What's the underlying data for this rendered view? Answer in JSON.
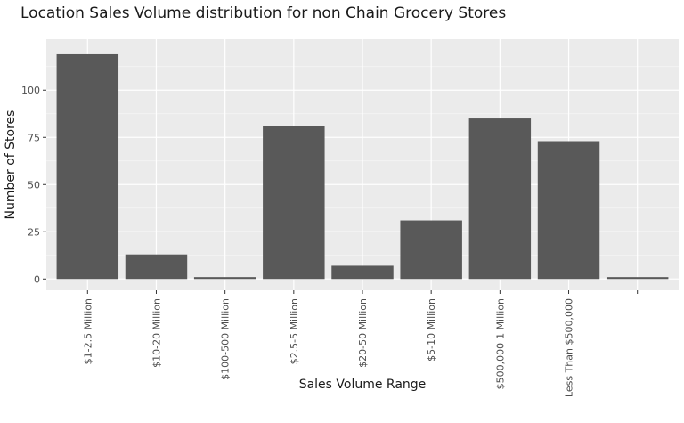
{
  "chart_data": {
    "type": "bar",
    "title": "Location Sales Volume distribution for non Chain Grocery Stores",
    "xlabel": "Sales Volume Range",
    "ylabel": "Number of Stores",
    "categories": [
      "$1-2.5 Million",
      "$10-20 Million",
      "$100-500 Million",
      "$2.5-5 Million",
      "$20-50 Million",
      "$5-10 Million",
      "$500,000-1 Million",
      "Less Than $500,000",
      ""
    ],
    "values": [
      119,
      13,
      1,
      81,
      7,
      31,
      85,
      73,
      1
    ],
    "ylim": [
      -6,
      127
    ],
    "yticks": [
      0,
      25,
      50,
      75,
      100
    ],
    "grid": true,
    "colors": {
      "bar": "#595959",
      "panel": "#ebebeb",
      "grid_major": "#ffffff",
      "grid_minor": "#f5f5f5"
    }
  }
}
